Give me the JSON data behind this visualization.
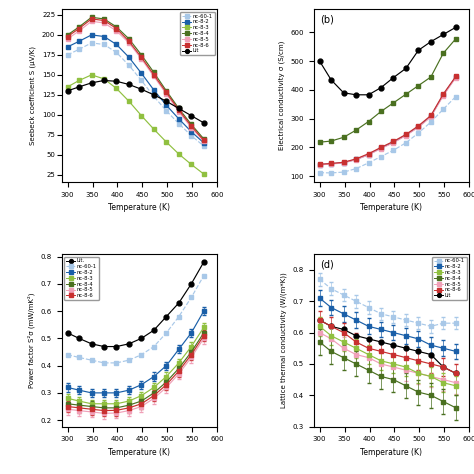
{
  "temp": [
    300,
    323,
    348,
    373,
    398,
    423,
    448,
    473,
    498,
    523,
    548,
    573
  ],
  "seebeck": {
    "nc-60-1": [
      175,
      182,
      190,
      188,
      178,
      162,
      143,
      123,
      105,
      89,
      74,
      61
    ],
    "nc-8-2": [
      185,
      192,
      200,
      198,
      188,
      172,
      152,
      131,
      112,
      95,
      79,
      65
    ],
    "nc-8-3": [
      135,
      143,
      150,
      145,
      133,
      117,
      99,
      82,
      66,
      51,
      38,
      26
    ],
    "nc-8-4": [
      200,
      210,
      222,
      220,
      210,
      195,
      175,
      153,
      130,
      108,
      88,
      70
    ],
    "nc-8-5": [
      195,
      205,
      217,
      215,
      205,
      190,
      170,
      148,
      126,
      104,
      84,
      67
    ],
    "nc-8-6": [
      198,
      208,
      220,
      218,
      208,
      192,
      172,
      150,
      128,
      106,
      86,
      68
    ],
    "Lit": [
      130,
      135,
      140,
      143,
      142,
      138,
      132,
      125,
      117,
      108,
      99,
      90
    ]
  },
  "elec": {
    "nc-8-4": [
      218,
      222,
      235,
      260,
      290,
      325,
      355,
      385,
      415,
      445,
      528,
      578
    ],
    "nc-8-2": [
      140,
      143,
      147,
      158,
      175,
      198,
      218,
      243,
      272,
      308,
      383,
      445
    ],
    "nc-8-5": [
      139,
      142,
      146,
      157,
      174,
      196,
      216,
      241,
      270,
      306,
      380,
      443
    ],
    "nc-8-6": [
      141,
      144,
      148,
      160,
      178,
      200,
      221,
      245,
      275,
      311,
      386,
      447
    ],
    "nc-60-1": [
      112,
      111,
      114,
      126,
      146,
      168,
      190,
      216,
      250,
      288,
      333,
      377
    ],
    "Lit": [
      500,
      435,
      390,
      383,
      383,
      408,
      443,
      475,
      538,
      568,
      593,
      618
    ]
  },
  "power": {
    "Lit": [
      0.52,
      0.5,
      0.48,
      0.47,
      0.47,
      0.48,
      0.5,
      0.53,
      0.58,
      0.63,
      0.7,
      0.78
    ],
    "nc-60-1": [
      0.44,
      0.43,
      0.42,
      0.41,
      0.41,
      0.42,
      0.44,
      0.47,
      0.52,
      0.58,
      0.65,
      0.73
    ],
    "nc-8-2": [
      0.32,
      0.31,
      0.3,
      0.3,
      0.3,
      0.31,
      0.33,
      0.36,
      0.4,
      0.46,
      0.52,
      0.6
    ],
    "nc-8-3": [
      0.28,
      0.27,
      0.26,
      0.26,
      0.26,
      0.27,
      0.29,
      0.32,
      0.36,
      0.41,
      0.47,
      0.54
    ],
    "nc-8-4": [
      0.26,
      0.255,
      0.25,
      0.245,
      0.245,
      0.255,
      0.27,
      0.3,
      0.34,
      0.39,
      0.45,
      0.52
    ],
    "nc-8-5": [
      0.24,
      0.235,
      0.23,
      0.225,
      0.226,
      0.235,
      0.25,
      0.28,
      0.32,
      0.37,
      0.43,
      0.5
    ],
    "nc-8-6": [
      0.25,
      0.245,
      0.24,
      0.235,
      0.236,
      0.245,
      0.26,
      0.29,
      0.33,
      0.38,
      0.44,
      0.51
    ]
  },
  "lattice": {
    "nc-60-1": [
      0.77,
      0.74,
      0.72,
      0.7,
      0.68,
      0.66,
      0.65,
      0.64,
      0.63,
      0.62,
      0.63,
      0.63
    ],
    "nc-8-2": [
      0.71,
      0.68,
      0.66,
      0.64,
      0.62,
      0.61,
      0.6,
      0.59,
      0.58,
      0.56,
      0.55,
      0.54
    ],
    "nc-8-3": [
      0.62,
      0.59,
      0.57,
      0.55,
      0.53,
      0.51,
      0.5,
      0.49,
      0.47,
      0.46,
      0.44,
      0.43
    ],
    "nc-8-4": [
      0.57,
      0.54,
      0.52,
      0.5,
      0.48,
      0.46,
      0.45,
      0.43,
      0.41,
      0.4,
      0.38,
      0.36
    ],
    "nc-8-5": [
      0.6,
      0.58,
      0.55,
      0.53,
      0.52,
      0.5,
      0.49,
      0.48,
      0.47,
      0.46,
      0.45,
      0.44
    ],
    "nc-8-6": [
      0.64,
      0.62,
      0.6,
      0.57,
      0.55,
      0.54,
      0.53,
      0.52,
      0.51,
      0.5,
      0.49,
      0.47
    ],
    "Lit": [
      0.64,
      0.62,
      0.61,
      0.59,
      0.58,
      0.57,
      0.56,
      0.55,
      0.54,
      0.53,
      0.49,
      0.47
    ]
  },
  "lattice_err": {
    "nc-60-1": [
      0.02,
      0.02,
      0.02,
      0.02,
      0.02,
      0.02,
      0.02,
      0.02,
      0.02,
      0.02,
      0.02,
      0.02
    ],
    "nc-8-2": [
      0.025,
      0.025,
      0.025,
      0.025,
      0.025,
      0.025,
      0.025,
      0.025,
      0.025,
      0.025,
      0.025,
      0.025
    ],
    "nc-8-3": [
      0.03,
      0.03,
      0.03,
      0.03,
      0.03,
      0.03,
      0.03,
      0.03,
      0.03,
      0.03,
      0.03,
      0.03
    ],
    "nc-8-4": [
      0.04,
      0.04,
      0.04,
      0.04,
      0.04,
      0.04,
      0.04,
      0.04,
      0.04,
      0.04,
      0.04,
      0.04
    ],
    "nc-8-5": [
      0.035,
      0.035,
      0.035,
      0.035,
      0.035,
      0.035,
      0.035,
      0.035,
      0.035,
      0.035,
      0.035,
      0.035
    ],
    "nc-8-6": [
      0.03,
      0.03,
      0.03,
      0.03,
      0.03,
      0.03,
      0.03,
      0.03,
      0.03,
      0.03,
      0.03,
      0.03
    ],
    "Lit": [
      0.0,
      0.0,
      0.0,
      0.0,
      0.0,
      0.0,
      0.0,
      0.0,
      0.0,
      0.0,
      0.0,
      0.0
    ]
  },
  "power_err": {
    "Lit": [
      0.0,
      0.0,
      0.0,
      0.0,
      0.0,
      0.0,
      0.0,
      0.0,
      0.0,
      0.0,
      0.0,
      0.0
    ],
    "nc-60-1": [
      0.0,
      0.0,
      0.0,
      0.0,
      0.0,
      0.0,
      0.0,
      0.0,
      0.0,
      0.0,
      0.0,
      0.0
    ],
    "nc-8-2": [
      0.015,
      0.015,
      0.015,
      0.015,
      0.015,
      0.015,
      0.015,
      0.015,
      0.015,
      0.015,
      0.015,
      0.015
    ],
    "nc-8-3": [
      0.015,
      0.015,
      0.015,
      0.015,
      0.015,
      0.015,
      0.015,
      0.015,
      0.015,
      0.015,
      0.015,
      0.015
    ],
    "nc-8-4": [
      0.02,
      0.02,
      0.02,
      0.02,
      0.02,
      0.02,
      0.02,
      0.02,
      0.02,
      0.02,
      0.02,
      0.02
    ],
    "nc-8-5": [
      0.02,
      0.02,
      0.02,
      0.02,
      0.02,
      0.02,
      0.02,
      0.02,
      0.02,
      0.02,
      0.02,
      0.02
    ],
    "nc-8-6": [
      0.02,
      0.02,
      0.02,
      0.02,
      0.02,
      0.02,
      0.02,
      0.02,
      0.02,
      0.02,
      0.02,
      0.02
    ]
  },
  "colors": {
    "nc-60-1": "#a8c8e8",
    "nc-8-2": "#1a5fa8",
    "nc-8-3": "#90c040",
    "nc-8-4": "#4a7020",
    "nc-8-5": "#f0a0b8",
    "nc-8-6": "#c83030",
    "Lit": "#000000"
  },
  "linestyles": {
    "nc-60-1": "--",
    "nc-8-2": "-",
    "nc-8-3": "-",
    "nc-8-4": "-",
    "nc-8-5": "-",
    "nc-8-6": "-",
    "Lit": "-"
  },
  "series_a": [
    "nc-60-1",
    "nc-8-2",
    "nc-8-3",
    "nc-8-4",
    "nc-8-5",
    "nc-8-6",
    "Lit"
  ],
  "series_b": [
    "Lit",
    "nc-8-4",
    "nc-8-2",
    "nc-8-5",
    "nc-8-6",
    "nc-60-1"
  ],
  "series_c": [
    "Lit",
    "nc-60-1",
    "nc-8-2",
    "nc-8-3",
    "nc-8-4",
    "nc-8-5",
    "nc-8-6"
  ],
  "series_d": [
    "nc-60-1",
    "nc-8-2",
    "nc-8-6",
    "Lit",
    "nc-8-5",
    "nc-8-3",
    "nc-8-4"
  ],
  "legend_a_labels": [
    "nc-60-1",
    "nc-8-2",
    "nc-8-3",
    "nc-8-4",
    "nc-8-5",
    "nc-8-6",
    "Lit"
  ],
  "legend_c_labels": [
    "Lit.",
    "nc-60-1",
    "nc-8-2",
    "nc-8-3",
    "nc-8-4",
    "nc-8-5",
    "nc-8-6"
  ],
  "legend_c_keys": [
    "Lit",
    "nc-60-1",
    "nc-8-2",
    "nc-8-3",
    "nc-8-4",
    "nc-8-5",
    "nc-8-6"
  ],
  "legend_d_labels": [
    "nc-60-1",
    "nc-8-2",
    "nc-8-3",
    "nc-8-4",
    "nc-8-5",
    "nc-8-6",
    "Lit"
  ],
  "legend_d_keys": [
    "nc-60-1",
    "nc-8-2",
    "nc-8-3",
    "nc-8-4",
    "nc-8-5",
    "nc-8-6",
    "Lit"
  ],
  "xlabel": "Temperature (K)",
  "ylabel_a": "Seebeck coefficient S (μV/K)",
  "ylabel_b": "Electrical conductivity σ (S/cm)",
  "ylabel_c": "Power factor S²σ (mW/mK²)",
  "ylabel_d": "Lattice thermal conductivity (W/(m*K))",
  "xlim": [
    288,
    588
  ],
  "ylim_b": [
    80,
    680
  ],
  "ylim_d": [
    0.3,
    0.85
  ],
  "xticks": [
    300,
    350,
    400,
    450,
    500,
    550,
    600
  ]
}
